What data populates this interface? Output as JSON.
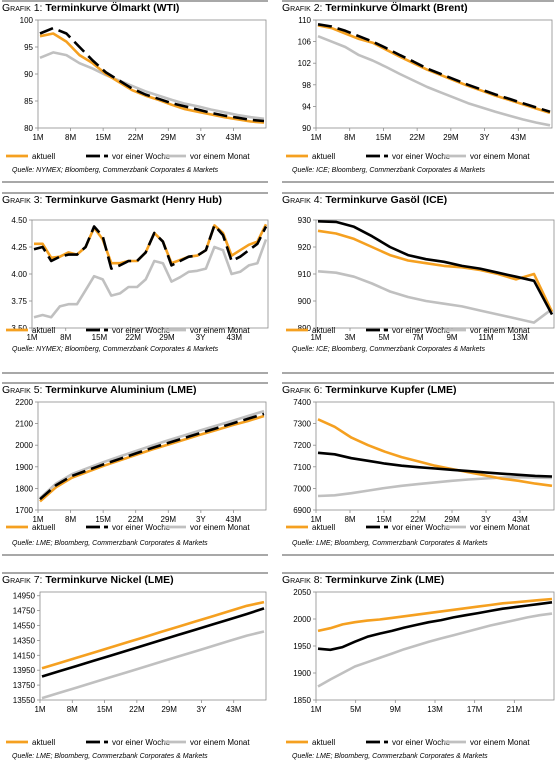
{
  "legend_labels": [
    "aktuell",
    "vor einer Woche",
    "vor einem Monat"
  ],
  "colors": {
    "aktuell": "#f5a020",
    "woche": "#000000",
    "monat": "#c0c0c0",
    "axis": "#8c8c8c",
    "rule": "#a8a8a8"
  },
  "chart_data": [
    {
      "type": "line",
      "label_prefix": "Grafik 1",
      "title": "Terminkurve Ölmarkt (WTI)",
      "source": "Quelle: NYMEX; Bloomberg, Commerzbank Corporates & Markets",
      "x_ticks": [
        "1M",
        "8M",
        "15M",
        "22M",
        "29M",
        "3Y",
        "43M"
      ],
      "y_ticks": [
        80,
        85,
        90,
        95,
        100
      ],
      "ylim": [
        80,
        100
      ],
      "series": [
        {
          "name": "aktuell",
          "style": "solid",
          "values": [
            97.0,
            97.5,
            96.0,
            93.5,
            92.0,
            90.0,
            88.5,
            87.0,
            86.0,
            85.2,
            84.3,
            83.5,
            83.0,
            82.5,
            82.0,
            81.6,
            81.2,
            81.0
          ]
        },
        {
          "name": "vor einer Woche",
          "style": "dashed",
          "values": [
            97.5,
            98.5,
            97.5,
            95.0,
            92.5,
            90.3,
            88.8,
            87.3,
            86.2,
            85.4,
            84.6,
            84.0,
            83.4,
            82.8,
            82.3,
            81.9,
            81.5,
            81.3
          ]
        },
        {
          "name": "vor einem Monat",
          "style": "solid",
          "values": [
            93.0,
            94.0,
            93.5,
            92.0,
            91.0,
            89.8,
            88.8,
            87.8,
            86.8,
            86.0,
            85.2,
            84.5,
            84.0,
            83.4,
            82.9,
            82.4,
            82.0,
            81.7
          ]
        }
      ]
    },
    {
      "type": "line",
      "label_prefix": "Grafik 2",
      "title": "Terminkurve Ölmarkt (Brent)",
      "source": "Quelle: ICE; Bloomberg, Commerzbank Corporates & Markets",
      "x_ticks": [
        "1M",
        "8M",
        "15M",
        "22M",
        "29M",
        "3Y",
        "43M"
      ],
      "y_ticks": [
        90,
        94,
        98,
        102,
        106,
        110
      ],
      "ylim": [
        90,
        110
      ],
      "series": [
        {
          "name": "aktuell",
          "style": "solid",
          "values": [
            109.0,
            108.5,
            107.5,
            106.5,
            105.8,
            104.5,
            103.2,
            102.0,
            100.8,
            99.8,
            98.8,
            97.8,
            96.9,
            96.0,
            95.2,
            94.4,
            93.6,
            92.8
          ]
        },
        {
          "name": "vor einer Woche",
          "style": "dashed",
          "values": [
            109.2,
            108.8,
            108.0,
            107.0,
            106.0,
            104.8,
            103.5,
            102.3,
            101.0,
            100.0,
            99.0,
            98.0,
            97.1,
            96.2,
            95.4,
            94.6,
            93.8,
            93.0
          ]
        },
        {
          "name": "vor einem Monat",
          "style": "solid",
          "values": [
            107.0,
            106.0,
            105.0,
            103.5,
            102.5,
            101.3,
            100.0,
            98.8,
            97.6,
            96.6,
            95.6,
            94.6,
            93.8,
            93.0,
            92.3,
            91.6,
            91.0,
            90.5
          ]
        }
      ]
    },
    {
      "type": "line",
      "label_prefix": "Grafik 3",
      "title": "Terminkurve Gasmarkt (Henry Hub)",
      "source": "Quelle: NYMEX; Bloomberg, Commerzbank Corporates & Markets",
      "x_ticks": [
        "1M",
        "8M",
        "15M",
        "22M",
        "29M",
        "3Y",
        "43M"
      ],
      "y_ticks": [
        3.5,
        3.75,
        4.0,
        4.25,
        4.5
      ],
      "y_tick_labels": [
        "3.50",
        "3.75",
        "4.00",
        "4.25",
        "4.50"
      ],
      "ylim": [
        3.5,
        4.5
      ],
      "series": [
        {
          "name": "aktuell",
          "style": "solid",
          "values": [
            4.28,
            4.28,
            4.15,
            4.16,
            4.2,
            4.18,
            4.25,
            4.43,
            4.32,
            4.1,
            4.1,
            4.12,
            4.12,
            4.2,
            4.38,
            4.3,
            4.1,
            4.13,
            4.16,
            4.17,
            4.22,
            4.45,
            4.38,
            4.17,
            4.22,
            4.27,
            4.3,
            4.46
          ]
        },
        {
          "name": "vor einer Woche",
          "style": "dashed",
          "values": [
            4.23,
            4.25,
            4.12,
            4.16,
            4.18,
            4.18,
            4.25,
            4.44,
            4.35,
            4.05,
            4.08,
            4.12,
            4.12,
            4.2,
            4.38,
            4.3,
            4.08,
            4.12,
            4.16,
            4.17,
            4.22,
            4.45,
            4.36,
            4.12,
            4.16,
            4.22,
            4.28,
            4.44
          ]
        },
        {
          "name": "vor einem Monat",
          "style": "solid",
          "values": [
            3.6,
            3.62,
            3.6,
            3.7,
            3.72,
            3.72,
            3.85,
            3.98,
            3.95,
            3.8,
            3.82,
            3.88,
            3.88,
            3.95,
            4.12,
            4.1,
            3.93,
            3.97,
            4.02,
            4.03,
            4.05,
            4.25,
            4.22,
            4.0,
            4.02,
            4.08,
            4.1,
            4.32
          ]
        }
      ]
    },
    {
      "type": "line",
      "label_prefix": "Grafik 4",
      "title": "Terminkurve Gasöl (ICE)",
      "source": "Quelle: ICE; Bloomberg, Commerzbank Corporates & Markets",
      "x_ticks": [
        "1M",
        "3M",
        "5M",
        "7M",
        "9M",
        "11M",
        "13M"
      ],
      "y_ticks": [
        890,
        900,
        910,
        920,
        930
      ],
      "ylim": [
        890,
        930
      ],
      "series": [
        {
          "name": "aktuell",
          "style": "solid",
          "values": [
            926.0,
            925.0,
            923.0,
            920.0,
            917.0,
            915.0,
            914.0,
            913.0,
            912.5,
            911.5,
            910.0,
            908.0,
            910.0,
            896.0
          ]
        },
        {
          "name": "vor einer Woche",
          "style": "solid",
          "values": [
            929.5,
            929.3,
            927.5,
            924.0,
            920.0,
            917.0,
            915.5,
            914.5,
            913.0,
            912.0,
            910.5,
            909.0,
            907.5,
            895.0
          ]
        },
        {
          "name": "vor einem Monat",
          "style": "solid",
          "values": [
            911.0,
            910.5,
            909.0,
            906.5,
            903.5,
            901.5,
            900.0,
            899.0,
            898.0,
            896.5,
            895.0,
            893.5,
            892.0,
            897.0
          ]
        }
      ]
    },
    {
      "type": "line",
      "label_prefix": "Grafik 5",
      "title": "Terminkurve Aluminium (LME)",
      "source": "Quelle: LME; Bloomberg, Commerzbank Corporates & Markets",
      "x_ticks": [
        "1M",
        "8M",
        "15M",
        "22M",
        "29M",
        "3Y",
        "43M"
      ],
      "y_ticks": [
        1700,
        1800,
        1900,
        2000,
        2100,
        2200
      ],
      "ylim": [
        1700,
        2200
      ],
      "series": [
        {
          "name": "aktuell",
          "style": "solid",
          "values": [
            1740,
            1805,
            1850,
            1878,
            1905,
            1930,
            1955,
            1980,
            2003,
            2025,
            2048,
            2070,
            2092,
            2112,
            2135
          ]
        },
        {
          "name": "vor einer Woche",
          "style": "dashed",
          "values": [
            1750,
            1815,
            1858,
            1885,
            1912,
            1937,
            1962,
            1987,
            2010,
            2033,
            2056,
            2078,
            2100,
            2122,
            2145
          ]
        },
        {
          "name": "vor einem Monat",
          "style": "solid",
          "values": [
            1755,
            1822,
            1866,
            1895,
            1922,
            1948,
            1973,
            1998,
            2022,
            2045,
            2068,
            2090,
            2112,
            2135,
            2158
          ]
        }
      ]
    },
    {
      "type": "line",
      "label_prefix": "Grafik 6",
      "title": "Terminkurve Kupfer (LME)",
      "source": "Quelle: LME; Bloomberg, Commerzbank Corporates & Markets",
      "x_ticks": [
        "1M",
        "8M",
        "15M",
        "22M",
        "29M",
        "3Y",
        "43M"
      ],
      "y_ticks": [
        6900,
        7000,
        7100,
        7200,
        7300,
        7400
      ],
      "ylim": [
        6900,
        7400
      ],
      "series": [
        {
          "name": "aktuell",
          "style": "solid",
          "values": [
            7320,
            7285,
            7235,
            7200,
            7170,
            7145,
            7125,
            7105,
            7090,
            7075,
            7060,
            7045,
            7035,
            7022,
            7012
          ]
        },
        {
          "name": "vor einer Woche",
          "style": "solid",
          "values": [
            7165,
            7158,
            7140,
            7128,
            7115,
            7105,
            7098,
            7092,
            7086,
            7080,
            7074,
            7068,
            7063,
            7058,
            7055
          ]
        },
        {
          "name": "vor einem Monat",
          "style": "solid",
          "values": [
            6965,
            6968,
            6978,
            6990,
            7002,
            7012,
            7020,
            7028,
            7035,
            7041,
            7046,
            7050,
            7052,
            7050,
            7048
          ]
        }
      ]
    },
    {
      "type": "line",
      "label_prefix": "Grafik 7",
      "title": "Terminkurve Nickel (LME)",
      "source": "Quelle: LME; Bloomberg, Commerzbank Corporates & Markets",
      "x_ticks": [
        "1M",
        "8M",
        "15M",
        "22M",
        "29M",
        "3Y",
        "43M"
      ],
      "y_ticks": [
        13550,
        13750,
        13950,
        14150,
        14350,
        14550,
        14750,
        14950
      ],
      "ylim": [
        13550,
        15000
      ],
      "series": [
        {
          "name": "aktuell",
          "style": "solid",
          "values": [
            13975,
            14045,
            14115,
            14185,
            14255,
            14325,
            14395,
            14465,
            14535,
            14605,
            14675,
            14745,
            14815,
            14865
          ]
        },
        {
          "name": "vor einer Woche",
          "style": "solid",
          "values": [
            13865,
            13935,
            14005,
            14075,
            14145,
            14215,
            14285,
            14355,
            14425,
            14495,
            14565,
            14635,
            14705,
            14780
          ]
        },
        {
          "name": "vor einem Monat",
          "style": "solid",
          "values": [
            13575,
            13645,
            13715,
            13785,
            13855,
            13925,
            13995,
            14065,
            14135,
            14205,
            14275,
            14345,
            14415,
            14470
          ]
        }
      ]
    },
    {
      "type": "line",
      "label_prefix": "Grafik 8",
      "title": "Terminkurve Zink (LME)",
      "source": "Quelle: LME; Bloomberg, Commerzbank Corporates & Markets",
      "x_ticks": [
        "1M",
        "5M",
        "9M",
        "13M",
        "17M",
        "21M"
      ],
      "y_ticks": [
        1850,
        1900,
        1950,
        2000,
        2050
      ],
      "ylim": [
        1850,
        2050
      ],
      "series": [
        {
          "name": "aktuell",
          "style": "solid",
          "values": [
            1978,
            1983,
            1990,
            1994,
            1997,
            1999,
            2002,
            2005,
            2008,
            2011,
            2014,
            2017,
            2020,
            2023,
            2026,
            2029,
            2031,
            2033,
            2035,
            2037
          ]
        },
        {
          "name": "vor einer Woche",
          "style": "solid",
          "values": [
            1945,
            1943,
            1948,
            1958,
            1967,
            1973,
            1978,
            1984,
            1989,
            1994,
            1998,
            2003,
            2007,
            2011,
            2015,
            2019,
            2022,
            2025,
            2028,
            2031
          ]
        },
        {
          "name": "vor einem Monat",
          "style": "solid",
          "values": [
            1875,
            1888,
            1900,
            1912,
            1920,
            1928,
            1936,
            1944,
            1951,
            1958,
            1964,
            1970,
            1976,
            1982,
            1988,
            1993,
            1998,
            2003,
            2007,
            2010
          ]
        }
      ]
    }
  ]
}
